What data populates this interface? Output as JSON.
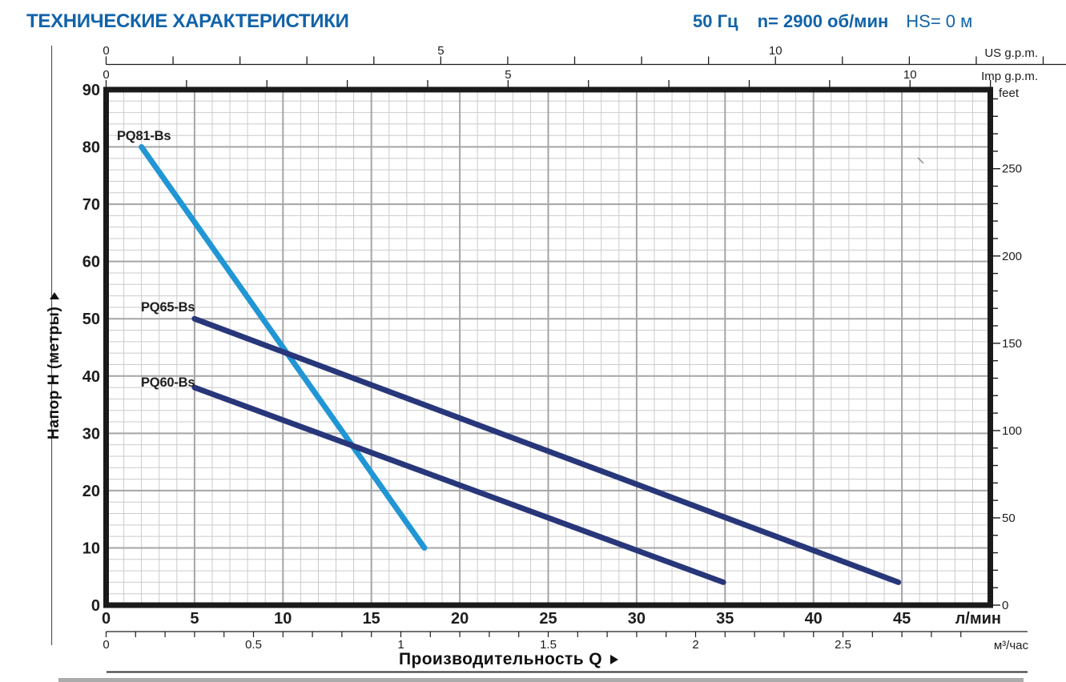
{
  "header": {
    "title": "ТЕХНИЧЕСКИЕ ХАРАКТЕРИСТИКИ",
    "frequency": "50 Гц",
    "speed": "n= 2900 об/мин",
    "suction_head": "HS= 0 м"
  },
  "colors": {
    "header_blue": "#1163a9",
    "curve_light_blue": "#2196d4",
    "curve_navy": "#28367a",
    "grid_minor": "#cbcbcb",
    "grid_major": "#a5a5a5",
    "plot_border": "#1a1a1a",
    "axis_ink": "#1d1d1d",
    "page_edge_gray": "#ababab"
  },
  "chart_data": {
    "type": "line",
    "xlabel": "Производительность Q",
    "ylabel": "Напор H (метры)",
    "x_axis_lmin": {
      "unit": "л/мин",
      "labeled_ticks": [
        0,
        5,
        10,
        15,
        20,
        25,
        30,
        35,
        40,
        45
      ],
      "minor_step": 1,
      "max": 50
    },
    "x_axis_m3h": {
      "unit": "м³/час",
      "labeled_ticks": [
        "0",
        "0.5",
        "1",
        "1.5",
        "2",
        "2.5"
      ],
      "minor_step": 0.1,
      "max_tick": 2.9,
      "lmin_per_unit": 16.667
    },
    "x_axis_us_gpm": {
      "unit": "US g.p.m.",
      "labeled_ticks": [
        0,
        5,
        10
      ],
      "minor_step": 1,
      "max_tick": 14,
      "lmin_per_unit": 3.785
    },
    "x_axis_imp_gpm": {
      "unit": "Imp g.p.m.",
      "labeled_ticks": [
        0,
        5,
        10
      ],
      "minor_step": 1,
      "max_tick": 11,
      "lmin_per_unit": 4.546
    },
    "y_axis_meters": {
      "labeled_ticks": [
        0,
        10,
        20,
        30,
        40,
        50,
        60,
        70,
        80,
        90
      ],
      "minor_step": 2,
      "max": 90
    },
    "y_axis_feet": {
      "unit": "feet",
      "labeled_ticks": [
        0,
        50,
        100,
        150,
        200,
        250
      ],
      "minor_step": 10,
      "max_tick": 290,
      "feet_per_meter": 3.2808
    },
    "series": [
      {
        "name": "PQ81-Bs",
        "color_key": "curve_light_blue",
        "points_lmin_m": [
          [
            2,
            80
          ],
          [
            18,
            10
          ]
        ]
      },
      {
        "name": "PQ65-Bs",
        "color_key": "curve_navy",
        "points_lmin_m": [
          [
            5,
            50
          ],
          [
            44.8,
            4
          ]
        ]
      },
      {
        "name": "PQ60-Bs",
        "color_key": "curve_navy",
        "points_lmin_m": [
          [
            5,
            38
          ],
          [
            34.9,
            4
          ]
        ]
      }
    ]
  }
}
